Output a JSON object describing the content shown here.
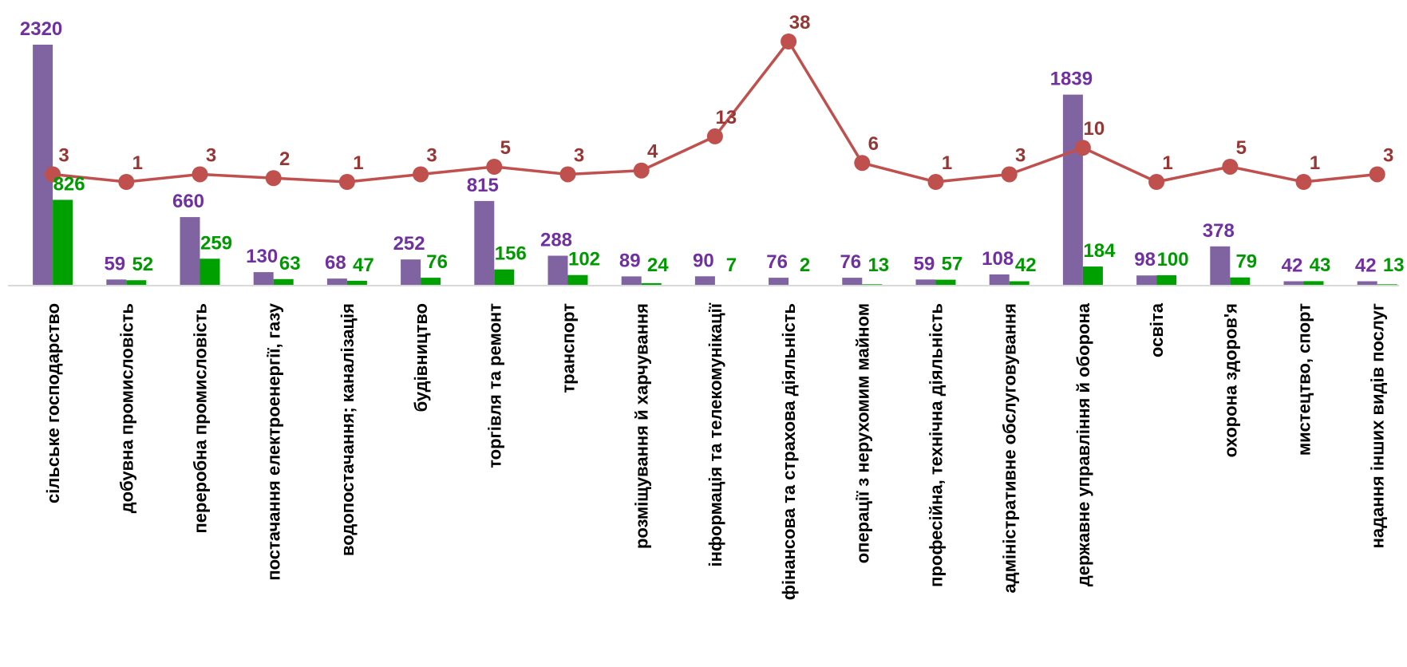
{
  "chart_data": {
    "type": "bar",
    "title": "",
    "xlabel": "",
    "ylabel": "",
    "grid": false,
    "legend": "none",
    "categories": [
      "сільське господарство",
      "добувна промисловість",
      "переробна промисловість",
      "постачання електроенергії, газу",
      "водопостачання; каналізація",
      "будівництво",
      "торгівля та ремонт",
      "транспорт",
      "розміщування й харчування",
      "інформація та телекомунікації",
      "фінансова та страхова діяльність",
      "операції з нерухомим майном",
      "професійна, технічна діяльність",
      "адміністративне обслуговування",
      "державне управління й оборона",
      "освіта",
      "охорона здоров'я",
      "мистецтво, спорт",
      "надання інших видів послуг"
    ],
    "series": [
      {
        "type": "bar",
        "color": "#8064A2",
        "label_color": "#7030A0",
        "values": [
          2320,
          59,
          660,
          130,
          68,
          252,
          815,
          288,
          89,
          90,
          76,
          76,
          59,
          108,
          1839,
          98,
          378,
          42,
          42
        ]
      },
      {
        "type": "bar",
        "color": "#00A000",
        "label_color": "#009900",
        "values": [
          826,
          52,
          259,
          63,
          47,
          76,
          156,
          102,
          24,
          7,
          2,
          13,
          57,
          42,
          184,
          100,
          79,
          43,
          13
        ]
      },
      {
        "type": "line",
        "color": "#C0504D",
        "label_color": "#953735",
        "values": [
          3,
          1,
          3,
          2,
          1,
          3,
          5,
          3,
          4,
          13,
          38,
          6,
          1,
          3,
          10,
          1,
          5,
          1,
          3
        ]
      }
    ],
    "bar_ylim": [
      0,
      2320
    ],
    "line_ylim": [
      1,
      38
    ]
  }
}
